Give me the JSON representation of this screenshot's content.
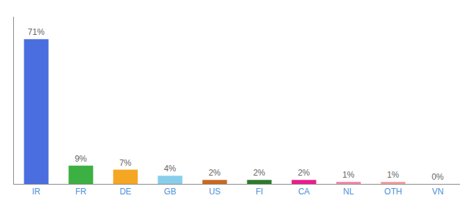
{
  "chart_data": {
    "type": "bar",
    "categories": [
      "IR",
      "FR",
      "DE",
      "GB",
      "US",
      "FI",
      "CA",
      "NL",
      "OTH",
      "VN"
    ],
    "values": [
      71,
      9,
      7,
      4,
      2,
      2,
      2,
      1,
      1,
      0
    ],
    "value_labels": [
      "71%",
      "9%",
      "7%",
      "4%",
      "2%",
      "2%",
      "2%",
      "1%",
      "1%",
      "0%"
    ],
    "colors": [
      "#4a6ee0",
      "#3cb043",
      "#f5a623",
      "#87ceeb",
      "#c96a20",
      "#2d7a2d",
      "#e91e8c",
      "#f48aab",
      "#f4a0a0",
      "#ff69b4"
    ],
    "ylim": [
      0,
      82
    ],
    "yticks": [],
    "tick_labels": "x",
    "grid": false,
    "data_labels": true
  }
}
